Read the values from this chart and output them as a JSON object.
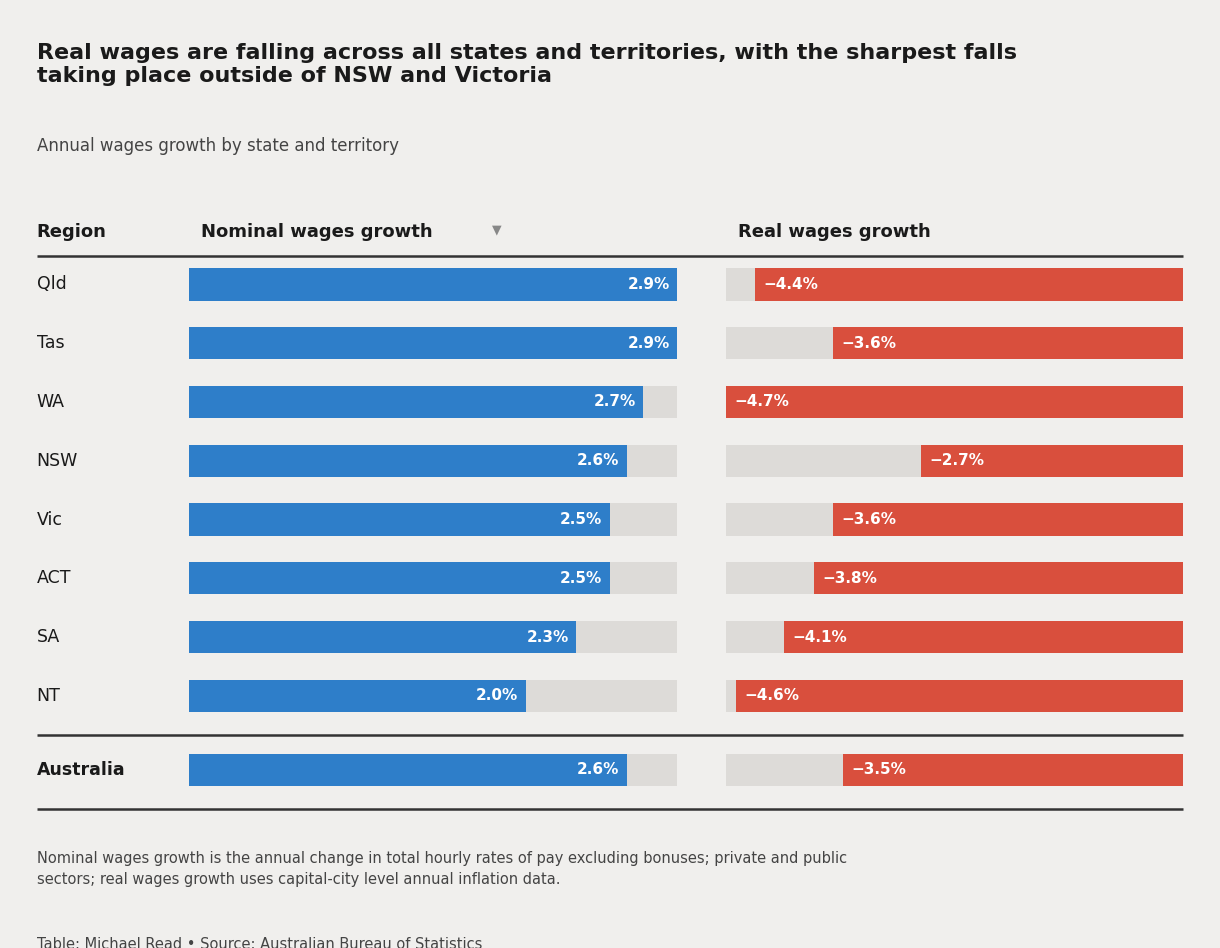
{
  "title": "Real wages are falling across all states and territories, with the sharpest falls\ntaking place outside of NSW and Victoria",
  "subtitle": "Annual wages growth by state and territory",
  "regions": [
    "Qld",
    "Tas",
    "WA",
    "NSW",
    "Vic",
    "ACT",
    "SA",
    "NT",
    "Australia"
  ],
  "nominal": [
    2.9,
    2.9,
    2.7,
    2.6,
    2.5,
    2.5,
    2.3,
    2.0,
    2.6
  ],
  "real": [
    -4.4,
    -3.6,
    -4.7,
    -2.7,
    -3.6,
    -3.8,
    -4.1,
    -4.6,
    -3.5
  ],
  "nominal_max": 2.9,
  "real_max": 4.7,
  "blue_color": "#2E7EC9",
  "red_color": "#D94F3D",
  "bg_color": "#F0EFED",
  "bar_bg_color": "#DDDBD8",
  "col1_header": "Region",
  "col2_header": "Nominal wages growth",
  "col3_header": "Real wages growth",
  "footer_note": "Nominal wages growth is the annual change in total hourly rates of pay excluding bonuses; private and public\nsectors; real wages growth uses capital-city level annual inflation data.",
  "footer_source": "Table: Michael Read • Source: Australian Bureau of Statistics"
}
